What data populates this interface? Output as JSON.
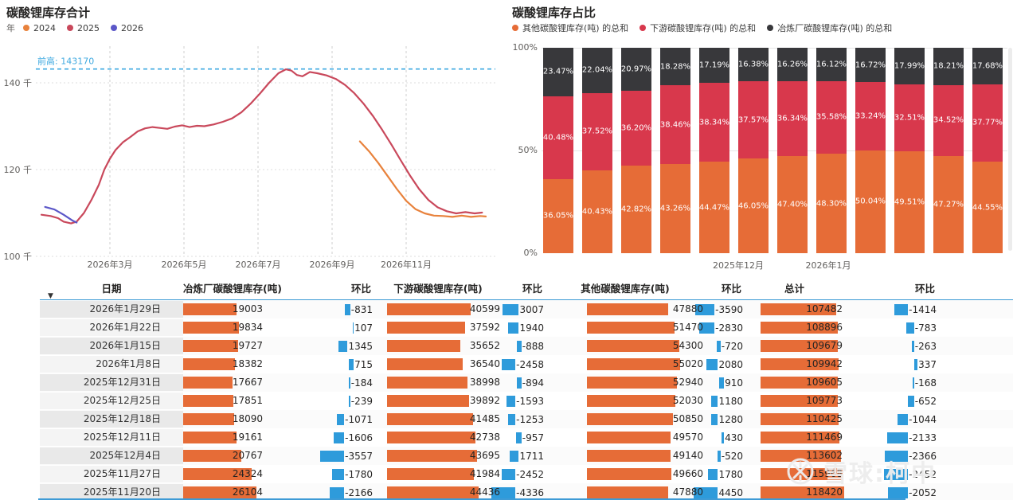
{
  "chart_data": [
    {
      "type": "line",
      "title": "碳酸锂库存合计",
      "legend_title": "年",
      "y_ticks": [
        {
          "label": "140 千",
          "value": 140
        },
        {
          "label": "120 千",
          "value": 120
        },
        {
          "label": "100 千",
          "value": 100
        }
      ],
      "x_ticks": [
        {
          "label": "2026年3月",
          "month": 3
        },
        {
          "label": "2026年5月",
          "month": 5
        },
        {
          "label": "2026年7月",
          "month": 7
        },
        {
          "label": "2026年9月",
          "month": 9
        },
        {
          "label": "2026年11月",
          "month": 11
        }
      ],
      "ref_line": {
        "label": "前高: 143170",
        "value": 143.17,
        "color": "#3FA9E0"
      },
      "y_domain": [
        100,
        145.5
      ],
      "series": [
        {
          "name": "2024",
          "color": "#E8823C",
          "points": [
            [
              9.75,
              126.5
            ],
            [
              10.0,
              124.2
            ],
            [
              10.25,
              121.5
            ],
            [
              10.5,
              118.5
            ],
            [
              10.75,
              115.5
            ],
            [
              11.0,
              112.8
            ],
            [
              11.25,
              110.9
            ],
            [
              11.5,
              109.9
            ],
            [
              11.75,
              109.4
            ],
            [
              12.0,
              109.3
            ],
            [
              12.25,
              109.1
            ],
            [
              12.5,
              109.4
            ],
            [
              12.75,
              109.1
            ],
            [
              13.0,
              109.3
            ],
            [
              13.15,
              109.2
            ]
          ]
        },
        {
          "name": "2025",
          "color": "#C9485B",
          "points": [
            [
              1.15,
              109.6
            ],
            [
              1.4,
              109.3
            ],
            [
              1.6,
              108.8
            ],
            [
              1.75,
              108.0
            ],
            [
              1.95,
              107.6
            ],
            [
              2.1,
              108.0
            ],
            [
              2.3,
              110.0
            ],
            [
              2.5,
              113.0
            ],
            [
              2.7,
              116.5
            ],
            [
              2.85,
              120.0
            ],
            [
              3.0,
              122.5
            ],
            [
              3.15,
              124.5
            ],
            [
              3.35,
              126.3
            ],
            [
              3.55,
              127.5
            ],
            [
              3.75,
              128.8
            ],
            [
              3.95,
              129.5
            ],
            [
              4.15,
              129.8
            ],
            [
              4.35,
              129.6
            ],
            [
              4.55,
              129.4
            ],
            [
              4.75,
              129.9
            ],
            [
              4.95,
              130.2
            ],
            [
              5.15,
              129.8
            ],
            [
              5.35,
              130.1
            ],
            [
              5.55,
              130.0
            ],
            [
              5.8,
              130.4
            ],
            [
              6.05,
              131.0
            ],
            [
              6.3,
              131.8
            ],
            [
              6.55,
              133.2
            ],
            [
              6.8,
              135.2
            ],
            [
              7.05,
              137.5
            ],
            [
              7.3,
              140.0
            ],
            [
              7.55,
              142.2
            ],
            [
              7.75,
              143.1
            ],
            [
              7.9,
              142.8
            ],
            [
              8.05,
              141.8
            ],
            [
              8.2,
              141.5
            ],
            [
              8.4,
              142.5
            ],
            [
              8.6,
              142.2
            ],
            [
              8.85,
              141.7
            ],
            [
              9.1,
              140.9
            ],
            [
              9.35,
              139.5
            ],
            [
              9.6,
              137.6
            ],
            [
              9.85,
              135.2
            ],
            [
              10.1,
              132.4
            ],
            [
              10.35,
              129.2
            ],
            [
              10.6,
              125.8
            ],
            [
              10.85,
              122.2
            ],
            [
              11.1,
              118.7
            ],
            [
              11.35,
              115.5
            ],
            [
              11.6,
              113.0
            ],
            [
              11.85,
              111.3
            ],
            [
              12.1,
              110.4
            ],
            [
              12.35,
              109.9
            ],
            [
              12.6,
              110.2
            ],
            [
              12.85,
              109.9
            ],
            [
              13.05,
              110.1
            ]
          ]
        },
        {
          "name": "2026",
          "color": "#5B57C8",
          "points": [
            [
              1.25,
              111.4
            ],
            [
              1.5,
              110.8
            ],
            [
              1.75,
              109.6
            ],
            [
              2.0,
              108.2
            ],
            [
              2.1,
              107.8
            ]
          ]
        }
      ]
    },
    {
      "type": "bar",
      "stacked": true,
      "value_format": "percent",
      "title": "碳酸锂库存占比",
      "legend": [
        {
          "key": "other",
          "label": "其他碳酸锂库存(吨) 的总和",
          "color": "#E66C37"
        },
        {
          "key": "downstream",
          "label": "下游碳酸锂库存(吨) 的总和",
          "color": "#D8384C"
        },
        {
          "key": "smelter",
          "label": "冶炼厂碳酸锂库存(吨) 的总和",
          "color": "#38383B"
        }
      ],
      "series_order": [
        "other",
        "downstream",
        "smelter"
      ],
      "y_ticks": [
        {
          "label": "100%",
          "value": 100
        },
        {
          "label": "50%",
          "value": 50
        },
        {
          "label": "0%",
          "value": 0
        }
      ],
      "x_labels": [
        {
          "label": "2025年12月",
          "pos": 292
        },
        {
          "label": "2026年1月",
          "pos": 405
        }
      ],
      "bars": [
        {
          "other": 36.05,
          "downstream": 40.48,
          "smelter": 23.47
        },
        {
          "other": 40.43,
          "downstream": 37.52,
          "smelter": 22.04
        },
        {
          "other": 42.82,
          "downstream": 36.2,
          "smelter": 20.97
        },
        {
          "other": 43.26,
          "downstream": 38.46,
          "smelter": 18.28
        },
        {
          "other": 44.47,
          "downstream": 38.34,
          "smelter": 17.19
        },
        {
          "other": 46.05,
          "downstream": 37.57,
          "smelter": 16.38
        },
        {
          "other": 47.4,
          "downstream": 36.34,
          "smelter": 16.26
        },
        {
          "other": 48.3,
          "downstream": 35.58,
          "smelter": 16.12
        },
        {
          "other": 50.04,
          "downstream": 33.24,
          "smelter": 16.72
        },
        {
          "other": 49.51,
          "downstream": 32.51,
          "smelter": 17.99
        },
        {
          "other": 47.27,
          "downstream": 34.52,
          "smelter": 18.21
        },
        {
          "other": 44.55,
          "downstream": 37.77,
          "smelter": 17.68
        }
      ]
    },
    {
      "type": "table",
      "sort_icon": "▼",
      "headers": [
        "日期",
        "冶炼厂碳酸锂库存(吨)",
        "环比",
        "下游碳酸锂库存(吨)",
        "环比",
        "其他碳酸锂库存(吨)",
        "环比",
        "总计",
        "环比"
      ],
      "rows": [
        [
          "2026年1月29日",
          19003,
          -831,
          40599,
          3007,
          47880,
          -3590,
          107482,
          -1414
        ],
        [
          "2026年1月22日",
          19834,
          107,
          37592,
          1940,
          51470,
          -2830,
          108896,
          -783
        ],
        [
          "2026年1月15日",
          19727,
          1345,
          35652,
          -888,
          54300,
          -720,
          109679,
          -263
        ],
        [
          "2026年1月8日",
          18382,
          715,
          36540,
          -2458,
          55020,
          2080,
          109942,
          337
        ],
        [
          "2025年12月31日",
          17667,
          -184,
          38998,
          -894,
          52940,
          910,
          109605,
          -168
        ],
        [
          "2025年12月25日",
          17851,
          -239,
          39892,
          -1593,
          52030,
          1180,
          109773,
          -652
        ],
        [
          "2025年12月18日",
          18090,
          -1071,
          41485,
          -1253,
          50850,
          1280,
          110425,
          -1044
        ],
        [
          "2025年12月11日",
          19161,
          -1606,
          42738,
          -957,
          49570,
          430,
          111469,
          -2133
        ],
        [
          "2025年12月4日",
          20767,
          -3557,
          43695,
          1711,
          49140,
          -520,
          113602,
          -2366
        ],
        [
          "2025年11月27日",
          24324,
          -1780,
          41984,
          -2452,
          49660,
          1780,
          115968,
          -2452
        ],
        [
          "2025年11月20日",
          26104,
          -2166,
          44436,
          -4336,
          47880,
          4450,
          118420,
          -2052
        ]
      ]
    }
  ],
  "watermark": {
    "text": "雪球:柯中"
  },
  "colors": {
    "value_bar": "#E66C37",
    "wow_bar": "#2E9BDB",
    "accent_blue": "#3E9BD6"
  }
}
